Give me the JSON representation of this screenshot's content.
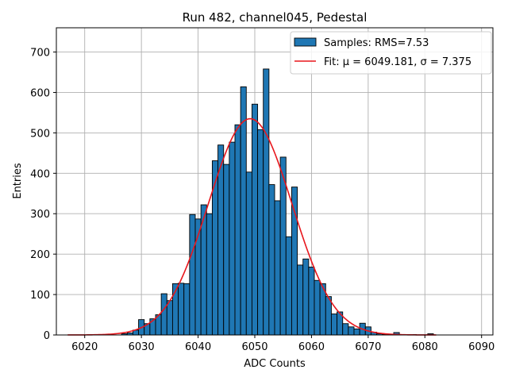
{
  "chart_data": {
    "type": "bar",
    "title": "Run 482, channel045, Pedestal",
    "xlabel": "ADC Counts",
    "ylabel": "Entries",
    "xlim": [
      6015,
      6092
    ],
    "ylim": [
      0,
      760
    ],
    "x_ticks": [
      6020,
      6030,
      6040,
      6050,
      6060,
      6070,
      6080,
      6090
    ],
    "y_ticks": [
      0,
      100,
      200,
      300,
      400,
      500,
      600,
      700
    ],
    "grid": true,
    "legend_position": "top-right",
    "bar_color": "#1f77b4",
    "fit_color": "#e8161c",
    "histogram": {
      "name": "Samples: RMS=7.53",
      "bin_width": 1,
      "bins": [
        {
          "x": 6027,
          "y": 3
        },
        {
          "x": 6028,
          "y": 5
        },
        {
          "x": 6029,
          "y": 12
        },
        {
          "x": 6030,
          "y": 38
        },
        {
          "x": 6031,
          "y": 28
        },
        {
          "x": 6032,
          "y": 40
        },
        {
          "x": 6033,
          "y": 50
        },
        {
          "x": 6034,
          "y": 102
        },
        {
          "x": 6035,
          "y": 85
        },
        {
          "x": 6036,
          "y": 127
        },
        {
          "x": 6037,
          "y": 128
        },
        {
          "x": 6038,
          "y": 127
        },
        {
          "x": 6039,
          "y": 298
        },
        {
          "x": 6040,
          "y": 287
        },
        {
          "x": 6041,
          "y": 322
        },
        {
          "x": 6042,
          "y": 300
        },
        {
          "x": 6043,
          "y": 431
        },
        {
          "x": 6044,
          "y": 470
        },
        {
          "x": 6045,
          "y": 422
        },
        {
          "x": 6046,
          "y": 477
        },
        {
          "x": 6047,
          "y": 520
        },
        {
          "x": 6048,
          "y": 614
        },
        {
          "x": 6049,
          "y": 403
        },
        {
          "x": 6050,
          "y": 571
        },
        {
          "x": 6051,
          "y": 508
        },
        {
          "x": 6052,
          "y": 658
        },
        {
          "x": 6053,
          "y": 372
        },
        {
          "x": 6054,
          "y": 332
        },
        {
          "x": 6055,
          "y": 440
        },
        {
          "x": 6056,
          "y": 243
        },
        {
          "x": 6057,
          "y": 366
        },
        {
          "x": 6058,
          "y": 173
        },
        {
          "x": 6059,
          "y": 188
        },
        {
          "x": 6060,
          "y": 168
        },
        {
          "x": 6061,
          "y": 135
        },
        {
          "x": 6062,
          "y": 127
        },
        {
          "x": 6063,
          "y": 95
        },
        {
          "x": 6064,
          "y": 52
        },
        {
          "x": 6065,
          "y": 57
        },
        {
          "x": 6066,
          "y": 28
        },
        {
          "x": 6067,
          "y": 20
        },
        {
          "x": 6068,
          "y": 15
        },
        {
          "x": 6069,
          "y": 29
        },
        {
          "x": 6070,
          "y": 20
        },
        {
          "x": 6071,
          "y": 7
        },
        {
          "x": 6072,
          "y": 3
        },
        {
          "x": 6073,
          "y": 2
        },
        {
          "x": 6074,
          "y": 1
        },
        {
          "x": 6075,
          "y": 6
        },
        {
          "x": 6076,
          "y": 1
        },
        {
          "x": 6077,
          "y": 1
        },
        {
          "x": 6078,
          "y": 1
        },
        {
          "x": 6079,
          "y": 0
        },
        {
          "x": 6080,
          "y": 0
        },
        {
          "x": 6081,
          "y": 3
        }
      ]
    },
    "fit": {
      "name": "Fit: μ = 6049.181, σ = 7.375",
      "type": "gaussian",
      "mu": 6049.181,
      "sigma": 7.375,
      "amplitude": 535,
      "x_range": [
        6017,
        6082
      ]
    }
  }
}
